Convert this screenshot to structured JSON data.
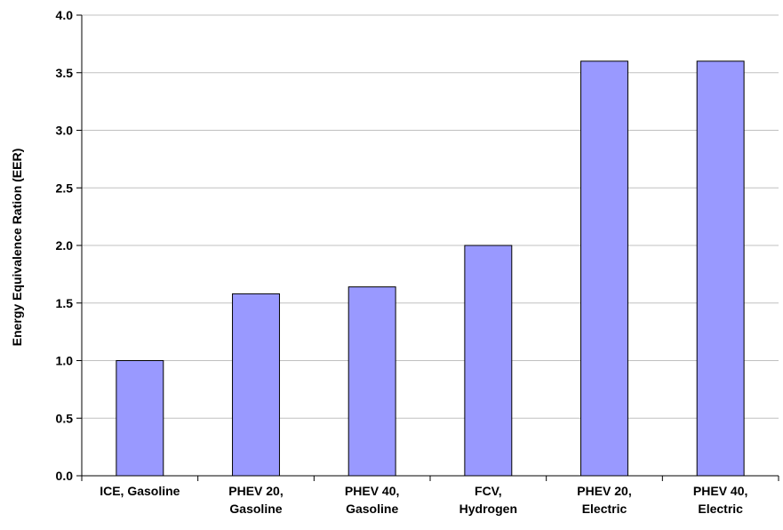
{
  "chart_data": {
    "type": "bar",
    "categories": [
      [
        "ICE, Gasoline"
      ],
      [
        "PHEV 20,",
        "Gasoline"
      ],
      [
        "PHEV 40,",
        "Gasoline"
      ],
      [
        "FCV,",
        "Hydrogen"
      ],
      [
        "PHEV 20,",
        "Electric"
      ],
      [
        "PHEV 40,",
        "Electric"
      ]
    ],
    "values": [
      1.0,
      1.58,
      1.64,
      2.0,
      3.6,
      3.6
    ],
    "title": "",
    "xlabel": "",
    "ylabel": "Energy Equivalence Ration (EER)",
    "ylim": [
      0,
      4.0
    ],
    "yticks": [
      "0.0",
      "0.5",
      "1.0",
      "1.5",
      "2.0",
      "2.5",
      "3.0",
      "3.5",
      "4.0"
    ],
    "grid": true,
    "legend": "none",
    "colors": {
      "bar_fill": "#9999ff",
      "bar_stroke": "#000000",
      "grid": "#c0c0c0",
      "axis": "#000000"
    }
  }
}
